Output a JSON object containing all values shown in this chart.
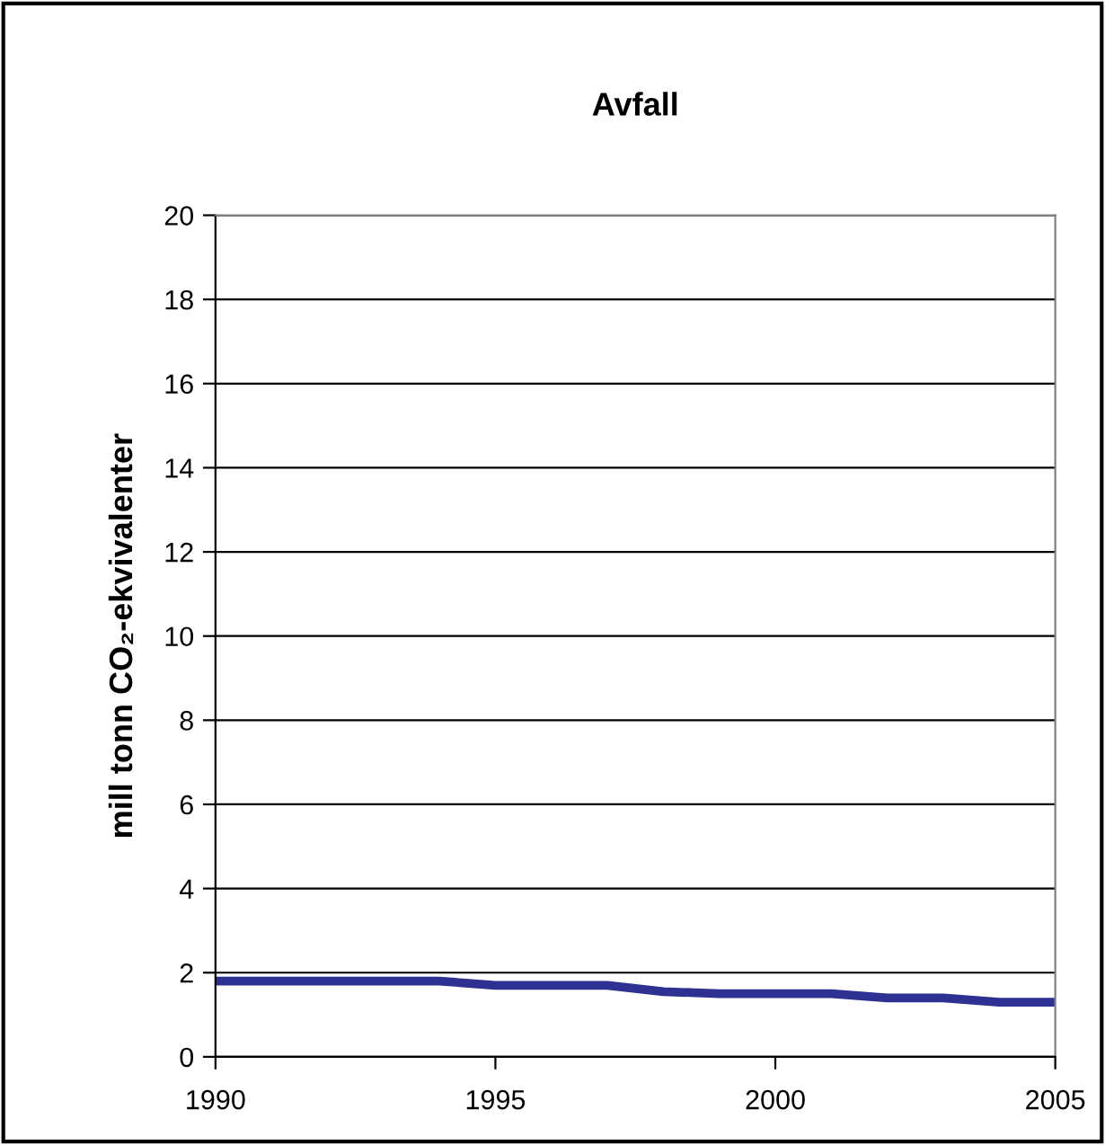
{
  "chart_data": {
    "type": "line",
    "title": "Avfall",
    "ylabel": "mill tonn CO₂-ekvivalenter",
    "x": [
      1990,
      1991,
      1992,
      1993,
      1994,
      1995,
      1996,
      1997,
      1998,
      1999,
      2000,
      2001,
      2002,
      2003,
      2004,
      2005
    ],
    "series": [
      {
        "color": "#2e3192",
        "values": [
          1.8,
          1.8,
          1.8,
          1.8,
          1.8,
          1.7,
          1.7,
          1.7,
          1.55,
          1.5,
          1.5,
          1.5,
          1.4,
          1.4,
          1.3,
          1.3
        ]
      }
    ],
    "xlim": [
      1990,
      2005
    ],
    "xticks": [
      1990,
      1995,
      2000,
      2005
    ],
    "ylim": [
      0,
      20
    ],
    "yticks": [
      0,
      2,
      4,
      6,
      8,
      10,
      12,
      14,
      16,
      18,
      20
    ],
    "grid": "y",
    "legend": false,
    "marker": "none",
    "line_style": "solid"
  }
}
